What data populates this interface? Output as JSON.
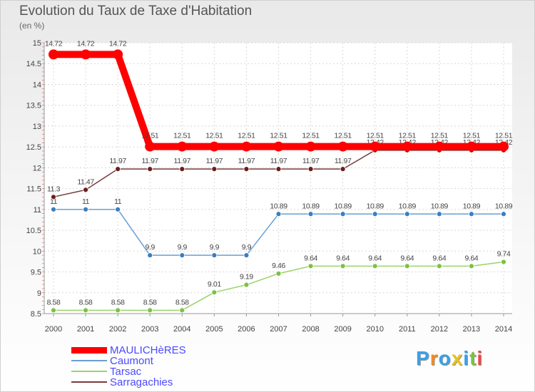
{
  "title": "Evolution du Taux de Taxe d'Habitation",
  "unit": "(en %)",
  "brand": {
    "text": "Proxiti",
    "colors": [
      "#3aa0e8",
      "#f08a24",
      "#3aa0e8",
      "#e8c21a",
      "#3aa0e8",
      "#7cc242",
      "#e84b4b"
    ]
  },
  "chart_data": {
    "type": "line",
    "title": "Evolution du Taux de Taxe d'Habitation",
    "ylabel": "(en %)",
    "xlabel": "",
    "x": [
      "2000",
      "2001",
      "2002",
      "2003",
      "2004",
      "2005",
      "2006",
      "2007",
      "2008",
      "2009",
      "2010",
      "2011",
      "2012",
      "2013",
      "2014"
    ],
    "ylim": [
      8.5,
      15
    ],
    "yticks": [
      "8.5",
      "9",
      "9.5",
      "10",
      "10.5",
      "11",
      "11.5",
      "12",
      "12.5",
      "13",
      "13.5",
      "14",
      "14.5",
      "15"
    ],
    "grid": true,
    "series": [
      {
        "name": "MAULICHèRES",
        "color": "#ff0000",
        "thick": true,
        "values": [
          14.72,
          14.72,
          14.72,
          12.51,
          12.51,
          12.51,
          12.51,
          12.51,
          12.51,
          12.51,
          12.51,
          12.51,
          12.51,
          12.51,
          12.51
        ],
        "labels": [
          "14.72",
          "14.72",
          "14.72",
          "12.51",
          "12.51",
          "12.51",
          "12.51",
          "12.51",
          "12.51",
          "12.51",
          "12.51",
          "12.51",
          "12.51",
          "12.51",
          "12.51"
        ]
      },
      {
        "name": "Caumont",
        "color": "#6a9fd0",
        "marker": "#3a7fc1",
        "values": [
          11,
          11,
          11,
          9.9,
          9.9,
          9.9,
          9.9,
          10.89,
          10.89,
          10.89,
          10.89,
          10.89,
          10.89,
          10.89,
          10.89
        ],
        "labels": [
          "11",
          "11",
          "11",
          "9.9",
          "9.9",
          "9.9",
          "9.9",
          "10.89",
          "10.89",
          "10.89",
          "10.89",
          "10.89",
          "10.89",
          "10.89",
          "10.89"
        ]
      },
      {
        "name": "Tarsac",
        "color": "#9ad36a",
        "marker": "#7cc242",
        "values": [
          8.58,
          8.58,
          8.58,
          8.58,
          8.58,
          9.01,
          9.19,
          9.46,
          9.64,
          9.64,
          9.64,
          9.64,
          9.64,
          9.64,
          9.74
        ],
        "labels": [
          "8.58",
          "8.58",
          "8.58",
          "8.58",
          "8.58",
          "9.01",
          "9.19",
          "9.46",
          "9.64",
          "9.64",
          "9.64",
          "9.64",
          "9.64",
          "9.64",
          "9.74"
        ]
      },
      {
        "name": "Sarragachies",
        "color": "#7a3a3a",
        "marker": "#6b1e1e",
        "values": [
          11.3,
          11.47,
          11.97,
          11.97,
          11.97,
          11.97,
          11.97,
          11.97,
          11.97,
          11.97,
          12.42,
          12.42,
          12.42,
          12.42,
          12.42
        ],
        "labels": [
          "11.3",
          "11.47",
          "11.97",
          "11.97",
          "11.97",
          "11.97",
          "11.97",
          "11.97",
          "11.97",
          "11.97",
          "12.42",
          "12.42",
          "12.42",
          "12.42",
          "12.42"
        ]
      }
    ]
  }
}
